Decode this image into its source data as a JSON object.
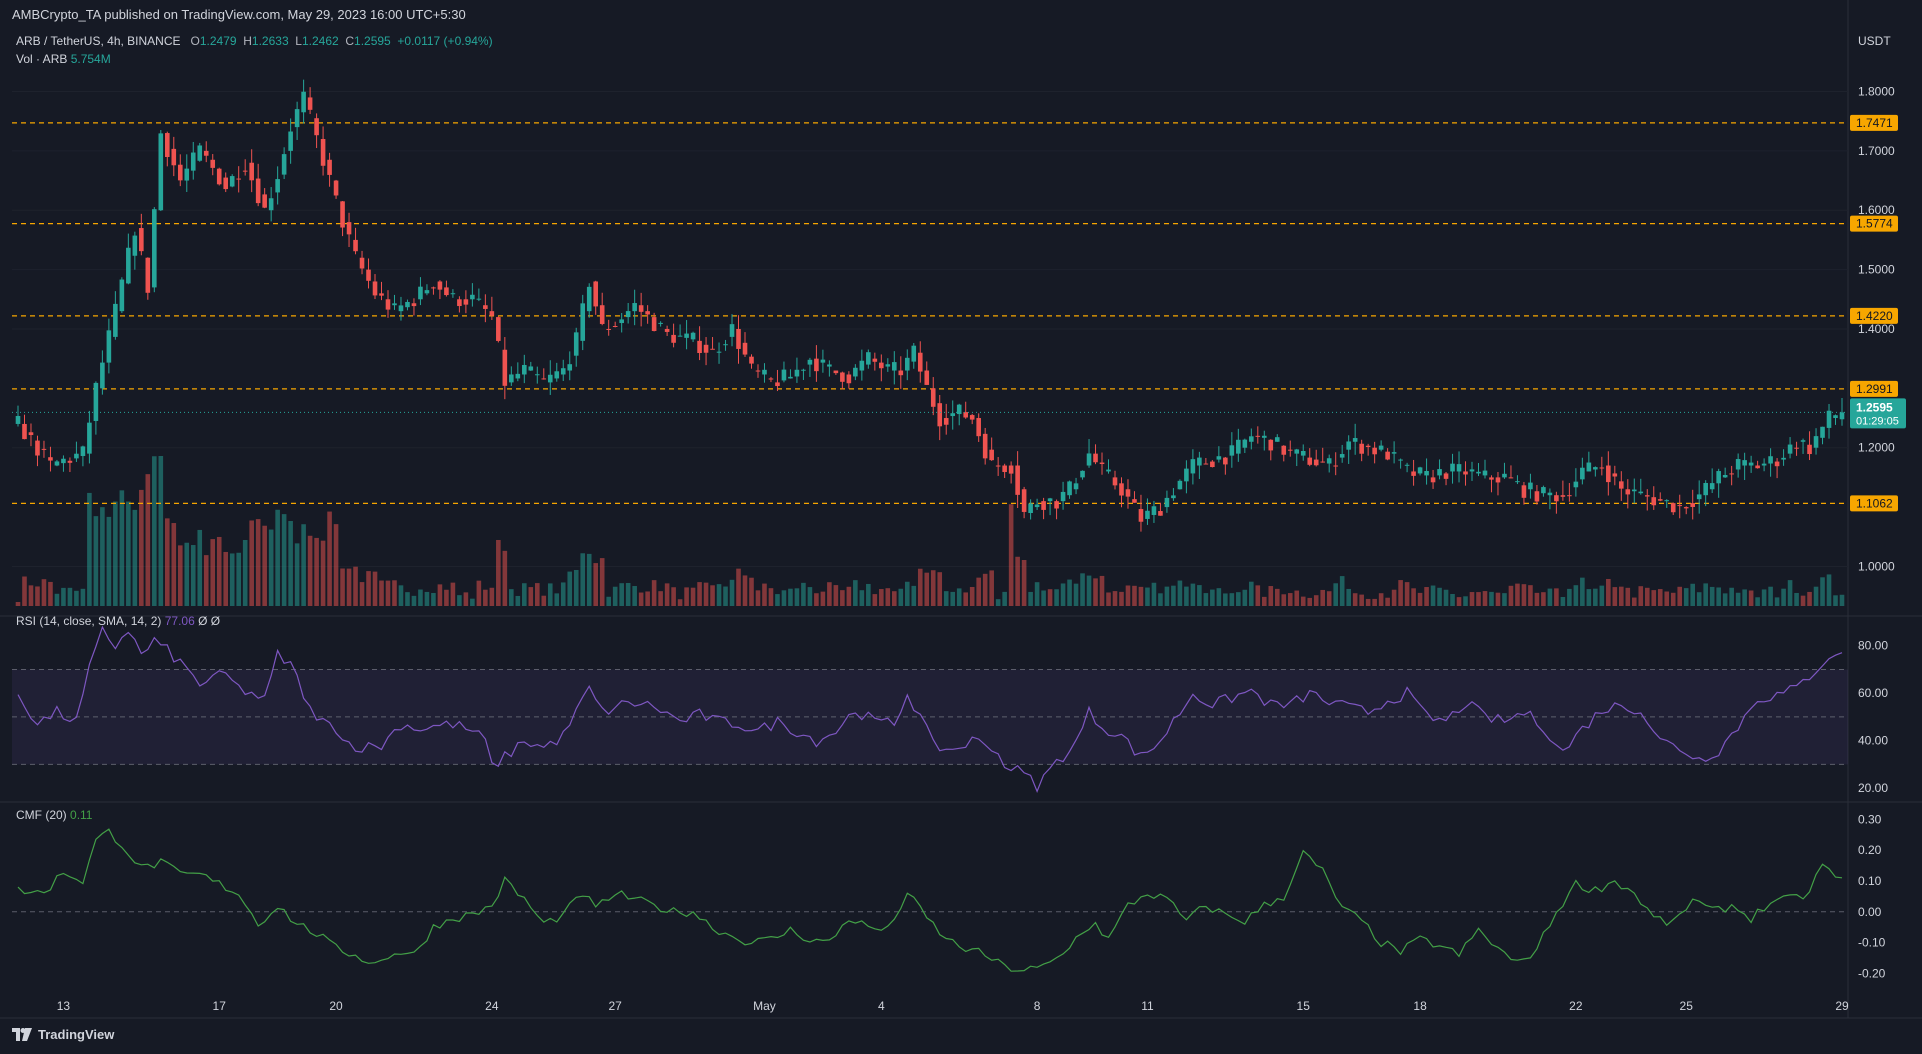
{
  "published": "AMBCrypto_TA published on TradingView.com, May 29, 2023 16:00 UTC+5:30",
  "symbol_line": {
    "symbol": "ARB / TetherUS, 4h, BINANCE",
    "o_label": "O",
    "o": "1.2479",
    "h_label": "H",
    "h": "1.2633",
    "l_label": "L",
    "l": "1.2462",
    "c_label": "C",
    "c": "1.2595",
    "change": "+0.0117 (+0.94%)"
  },
  "volume_line": {
    "label": "Vol · ARB",
    "value": "5.754M"
  },
  "rsi_line": {
    "label": "RSI (14, close, SMA, 14, 2)",
    "value": "77.06",
    "extra": "Ø Ø"
  },
  "cmf_line": {
    "label": "CMF (20)",
    "value": "0.11"
  },
  "currency": "USDT",
  "last_price": {
    "price": "1.2595",
    "countdown": "01:29:05"
  },
  "footer_logo": "TradingView",
  "colors": {
    "background": "#161a25",
    "up": "#26a69a",
    "down": "#ef5350",
    "level": "#f7a600",
    "rsi": "#7e57c2",
    "cmf": "#43a047"
  },
  "chart_data": [
    {
      "type": "candlestick",
      "title": "ARB / TetherUS, 4h, BINANCE",
      "ylim": [
        0.93,
        1.88
      ],
      "y_ticks": [
        "1.8000",
        "1.7000",
        "1.6000",
        "1.5000",
        "1.4000",
        "1.2000",
        "1.0000"
      ],
      "x_ticks": [
        "13",
        "17",
        "20",
        "24",
        "27",
        "May",
        "4",
        "8",
        "11",
        "15",
        "18",
        "22",
        "25",
        "29"
      ],
      "levels": [
        {
          "label": "1.7471",
          "value": 1.7471
        },
        {
          "label": "1.5774",
          "value": 1.5774
        },
        {
          "label": "1.4220",
          "value": 1.422
        },
        {
          "label": "1.2991",
          "value": 1.2991
        },
        {
          "label": "1.1062",
          "value": 1.1062
        }
      ],
      "close_anchors": [
        [
          0,
          1.24
        ],
        [
          5,
          1.17
        ],
        [
          10,
          1.19
        ],
        [
          12,
          1.3
        ],
        [
          15,
          1.43
        ],
        [
          18,
          1.57
        ],
        [
          20,
          1.47
        ],
        [
          22,
          1.73
        ],
        [
          25,
          1.65
        ],
        [
          28,
          1.7
        ],
        [
          32,
          1.64
        ],
        [
          35,
          1.68
        ],
        [
          38,
          1.6
        ],
        [
          40,
          1.66
        ],
        [
          42,
          1.74
        ],
        [
          44,
          1.79
        ],
        [
          46,
          1.72
        ],
        [
          48,
          1.65
        ],
        [
          50,
          1.58
        ],
        [
          52,
          1.52
        ],
        [
          55,
          1.46
        ],
        [
          58,
          1.43
        ],
        [
          61,
          1.45
        ],
        [
          64,
          1.48
        ],
        [
          67,
          1.45
        ],
        [
          70,
          1.45
        ],
        [
          73,
          1.42
        ],
        [
          75,
          1.31
        ],
        [
          78,
          1.33
        ],
        [
          81,
          1.31
        ],
        [
          84,
          1.33
        ],
        [
          86,
          1.38
        ],
        [
          88,
          1.48
        ],
        [
          90,
          1.4
        ],
        [
          92,
          1.41
        ],
        [
          95,
          1.44
        ],
        [
          97,
          1.42
        ],
        [
          100,
          1.39
        ],
        [
          104,
          1.38
        ],
        [
          107,
          1.36
        ],
        [
          110,
          1.4
        ],
        [
          113,
          1.33
        ],
        [
          116,
          1.31
        ],
        [
          119,
          1.32
        ],
        [
          122,
          1.35
        ],
        [
          125,
          1.33
        ],
        [
          128,
          1.32
        ],
        [
          131,
          1.35
        ],
        [
          134,
          1.33
        ],
        [
          136,
          1.33
        ],
        [
          138,
          1.36
        ],
        [
          140,
          1.3
        ],
        [
          142,
          1.25
        ],
        [
          145,
          1.26
        ],
        [
          147,
          1.25
        ],
        [
          150,
          1.17
        ],
        [
          153,
          1.17
        ],
        [
          155,
          1.09
        ],
        [
          157,
          1.11
        ],
        [
          160,
          1.11
        ],
        [
          162,
          1.13
        ],
        [
          165,
          1.19
        ],
        [
          167,
          1.16
        ],
        [
          170,
          1.13
        ],
        [
          173,
          1.08
        ],
        [
          176,
          1.1
        ],
        [
          178,
          1.13
        ],
        [
          181,
          1.17
        ],
        [
          184,
          1.18
        ],
        [
          187,
          1.19
        ],
        [
          190,
          1.22
        ],
        [
          193,
          1.21
        ],
        [
          196,
          1.19
        ],
        [
          199,
          1.18
        ],
        [
          202,
          1.17
        ],
        [
          205,
          1.21
        ],
        [
          208,
          1.2
        ],
        [
          211,
          1.19
        ],
        [
          214,
          1.16
        ],
        [
          217,
          1.15
        ],
        [
          220,
          1.16
        ],
        [
          223,
          1.16
        ],
        [
          226,
          1.15
        ],
        [
          229,
          1.15
        ],
        [
          232,
          1.13
        ],
        [
          235,
          1.12
        ],
        [
          238,
          1.12
        ],
        [
          241,
          1.16
        ],
        [
          244,
          1.17
        ],
        [
          247,
          1.13
        ],
        [
          250,
          1.12
        ],
        [
          253,
          1.11
        ],
        [
          256,
          1.1
        ],
        [
          259,
          1.12
        ],
        [
          262,
          1.15
        ],
        [
          265,
          1.17
        ],
        [
          268,
          1.17
        ],
        [
          271,
          1.18
        ],
        [
          274,
          1.21
        ],
        [
          276,
          1.2
        ],
        [
          279,
          1.25
        ],
        [
          281,
          1.2595
        ]
      ],
      "volume_label": "Vol · ARB",
      "volume_last": "5.754M"
    },
    {
      "type": "line",
      "title": "RSI (14, close, SMA, 14, 2)",
      "ylim": [
        15,
        90
      ],
      "y_ticks": [
        "80.00",
        "60.00",
        "40.00",
        "20.00"
      ],
      "bands": [
        70,
        50,
        30
      ],
      "last_value": 77.06,
      "anchors": [
        [
          0,
          60
        ],
        [
          3,
          47
        ],
        [
          6,
          52
        ],
        [
          9,
          48
        ],
        [
          11,
          70
        ],
        [
          13,
          86
        ],
        [
          15,
          80
        ],
        [
          17,
          87
        ],
        [
          19,
          76
        ],
        [
          21,
          82
        ],
        [
          23,
          78
        ],
        [
          26,
          70
        ],
        [
          28,
          64
        ],
        [
          30,
          66
        ],
        [
          32,
          68
        ],
        [
          34,
          62
        ],
        [
          36,
          60
        ],
        [
          38,
          57
        ],
        [
          40,
          76
        ],
        [
          42,
          72
        ],
        [
          44,
          60
        ],
        [
          46,
          47
        ],
        [
          48,
          50
        ],
        [
          50,
          40
        ],
        [
          53,
          37
        ],
        [
          56,
          38
        ],
        [
          59,
          47
        ],
        [
          62,
          45
        ],
        [
          64,
          46
        ],
        [
          67,
          47
        ],
        [
          70,
          44
        ],
        [
          72,
          40
        ],
        [
          73,
          29
        ],
        [
          75,
          33
        ],
        [
          78,
          40
        ],
        [
          81,
          37
        ],
        [
          84,
          42
        ],
        [
          86,
          52
        ],
        [
          88,
          62
        ],
        [
          90,
          52
        ],
        [
          93,
          55
        ],
        [
          96,
          56
        ],
        [
          99,
          53
        ],
        [
          102,
          48
        ],
        [
          105,
          51
        ],
        [
          108,
          48
        ],
        [
          111,
          47
        ],
        [
          114,
          44
        ],
        [
          117,
          48
        ],
        [
          120,
          44
        ],
        [
          123,
          40
        ],
        [
          126,
          44
        ],
        [
          129,
          53
        ],
        [
          132,
          48
        ],
        [
          135,
          47
        ],
        [
          137,
          60
        ],
        [
          139,
          50
        ],
        [
          141,
          38
        ],
        [
          144,
          36
        ],
        [
          147,
          40
        ],
        [
          150,
          38
        ],
        [
          152,
          30
        ],
        [
          155,
          26
        ],
        [
          157,
          21
        ],
        [
          160,
          31
        ],
        [
          163,
          39
        ],
        [
          165,
          52
        ],
        [
          167,
          46
        ],
        [
          170,
          42
        ],
        [
          173,
          33
        ],
        [
          176,
          40
        ],
        [
          178,
          48
        ],
        [
          181,
          60
        ],
        [
          184,
          55
        ],
        [
          187,
          58
        ],
        [
          190,
          61
        ],
        [
          193,
          55
        ],
        [
          196,
          55
        ],
        [
          199,
          60
        ],
        [
          202,
          56
        ],
        [
          205,
          54
        ],
        [
          208,
          52
        ],
        [
          211,
          57
        ],
        [
          214,
          60
        ],
        [
          217,
          50
        ],
        [
          220,
          48
        ],
        [
          223,
          56
        ],
        [
          226,
          50
        ],
        [
          229,
          48
        ],
        [
          232,
          52
        ],
        [
          235,
          46
        ],
        [
          238,
          35
        ],
        [
          241,
          45
        ],
        [
          244,
          53
        ],
        [
          247,
          55
        ],
        [
          250,
          53
        ],
        [
          253,
          40
        ],
        [
          256,
          37
        ],
        [
          259,
          32
        ],
        [
          262,
          36
        ],
        [
          265,
          46
        ],
        [
          268,
          58
        ],
        [
          271,
          59
        ],
        [
          274,
          62
        ],
        [
          277,
          70
        ],
        [
          279,
          76
        ],
        [
          281,
          77.06
        ]
      ]
    },
    {
      "type": "line",
      "title": "CMF (20)",
      "ylim": [
        -0.27,
        0.33
      ],
      "y_ticks": [
        "0.30",
        "0.20",
        "0.10",
        "0.00",
        "-0.10",
        "-0.20"
      ],
      "zero_line": 0,
      "last_value": 0.11,
      "anchors": [
        [
          0,
          0.07
        ],
        [
          4,
          0.06
        ],
        [
          7,
          0.13
        ],
        [
          10,
          0.1
        ],
        [
          12,
          0.23
        ],
        [
          14,
          0.26
        ],
        [
          16,
          0.22
        ],
        [
          19,
          0.14
        ],
        [
          22,
          0.16
        ],
        [
          25,
          0.12
        ],
        [
          28,
          0.12
        ],
        [
          31,
          0.09
        ],
        [
          34,
          0.06
        ],
        [
          37,
          -0.04
        ],
        [
          40,
          0.02
        ],
        [
          43,
          -0.04
        ],
        [
          46,
          -0.07
        ],
        [
          49,
          -0.12
        ],
        [
          52,
          -0.14
        ],
        [
          55,
          -0.17
        ],
        [
          58,
          -0.13
        ],
        [
          61,
          -0.14
        ],
        [
          64,
          -0.05
        ],
        [
          67,
          -0.02
        ],
        [
          70,
          -0.01
        ],
        [
          73,
          0.02
        ],
        [
          75,
          0.1
        ],
        [
          78,
          0.04
        ],
        [
          81,
          -0.04
        ],
        [
          84,
          -0.01
        ],
        [
          87,
          0.06
        ],
        [
          89,
          0.01
        ],
        [
          92,
          0.06
        ],
        [
          95,
          0.04
        ],
        [
          98,
          0.02
        ],
        [
          101,
          0.0
        ],
        [
          104,
          0.0
        ],
        [
          107,
          -0.05
        ],
        [
          110,
          -0.08
        ],
        [
          113,
          -0.1
        ],
        [
          116,
          -0.09
        ],
        [
          119,
          -0.06
        ],
        [
          122,
          -0.09
        ],
        [
          125,
          -0.1
        ],
        [
          128,
          -0.02
        ],
        [
          131,
          -0.05
        ],
        [
          134,
          -0.06
        ],
        [
          137,
          0.06
        ],
        [
          140,
          -0.02
        ],
        [
          143,
          -0.09
        ],
        [
          146,
          -0.12
        ],
        [
          149,
          -0.14
        ],
        [
          152,
          -0.18
        ],
        [
          155,
          -0.19
        ],
        [
          158,
          -0.18
        ],
        [
          161,
          -0.14
        ],
        [
          164,
          -0.06
        ],
        [
          166,
          -0.04
        ],
        [
          168,
          -0.09
        ],
        [
          171,
          0.02
        ],
        [
          174,
          0.06
        ],
        [
          177,
          0.04
        ],
        [
          180,
          -0.03
        ],
        [
          183,
          0.02
        ],
        [
          186,
          -0.01
        ],
        [
          189,
          -0.03
        ],
        [
          192,
          0.02
        ],
        [
          195,
          0.05
        ],
        [
          198,
          0.19
        ],
        [
          201,
          0.13
        ],
        [
          204,
          0.01
        ],
        [
          207,
          -0.03
        ],
        [
          210,
          -0.1
        ],
        [
          213,
          -0.13
        ],
        [
          216,
          -0.09
        ],
        [
          219,
          -0.11
        ],
        [
          222,
          -0.14
        ],
        [
          225,
          -0.06
        ],
        [
          228,
          -0.12
        ],
        [
          231,
          -0.17
        ],
        [
          234,
          -0.12
        ],
        [
          237,
          0.0
        ],
        [
          240,
          0.09
        ],
        [
          243,
          0.07
        ],
        [
          246,
          0.1
        ],
        [
          249,
          0.06
        ],
        [
          252,
          -0.02
        ],
        [
          255,
          -0.04
        ],
        [
          258,
          0.04
        ],
        [
          261,
          0.0
        ],
        [
          264,
          0.02
        ],
        [
          267,
          -0.02
        ],
        [
          270,
          0.03
        ],
        [
          273,
          0.04
        ],
        [
          276,
          0.06
        ],
        [
          278,
          0.16
        ],
        [
          280,
          0.1
        ],
        [
          281,
          0.11
        ]
      ]
    }
  ]
}
